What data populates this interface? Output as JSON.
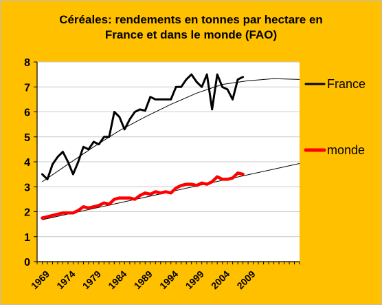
{
  "colors": {
    "background": "#ffc000",
    "plot_area": "#ffffff",
    "france": "#000000",
    "monde": "#ff0000",
    "trend": "#000000"
  },
  "chart_data": {
    "type": "line",
    "title": "Céréales: rendements en tonnes par hectare en France et dans le monde (FAO)",
    "title_lines": [
      "Céréales: rendements en tonnes par hectare en",
      "France et dans le monde (FAO)"
    ],
    "xlabel": "",
    "ylabel": "",
    "ylim": [
      0,
      8
    ],
    "yticks": [
      0,
      1,
      2,
      3,
      4,
      5,
      6,
      7,
      8
    ],
    "xlim": [
      1969,
      2020
    ],
    "xtick_labels": [
      "1969",
      "1974",
      "1979",
      "1984",
      "1989",
      "1994",
      "1999",
      "2004",
      "2009"
    ],
    "grid": "horizontal",
    "legend_position": "right",
    "series": [
      {
        "name": "France",
        "x": [
          1970,
          1971,
          1972,
          1973,
          1974,
          1975,
          1976,
          1977,
          1978,
          1979,
          1980,
          1981,
          1982,
          1983,
          1984,
          1985,
          1986,
          1987,
          1988,
          1989,
          1990,
          1991,
          1992,
          1993,
          1994,
          1995,
          1996,
          1997,
          1998,
          1999,
          2000,
          2001,
          2002,
          2003,
          2004,
          2005,
          2006,
          2007,
          2008,
          2009
        ],
        "values": [
          3.5,
          3.3,
          3.9,
          4.2,
          4.4,
          4.0,
          3.5,
          4.0,
          4.6,
          4.5,
          4.8,
          4.7,
          5.0,
          5.0,
          6.0,
          5.8,
          5.3,
          5.7,
          6.0,
          6.1,
          6.05,
          6.6,
          6.5,
          6.5,
          6.5,
          6.5,
          7.0,
          7.0,
          7.3,
          7.5,
          7.2,
          7.0,
          7.5,
          6.1,
          7.5,
          7.0,
          6.9,
          6.5,
          7.3,
          7.4
        ]
      },
      {
        "name": "monde",
        "x": [
          1970,
          1971,
          1972,
          1973,
          1974,
          1975,
          1976,
          1977,
          1978,
          1979,
          1980,
          1981,
          1982,
          1983,
          1984,
          1985,
          1986,
          1987,
          1988,
          1989,
          1990,
          1991,
          1992,
          1993,
          1994,
          1995,
          1996,
          1997,
          1998,
          1999,
          2000,
          2001,
          2002,
          2003,
          2004,
          2005,
          2006,
          2007,
          2008,
          2009
        ],
        "values": [
          1.75,
          1.8,
          1.85,
          1.9,
          1.95,
          1.95,
          1.95,
          2.05,
          2.2,
          2.15,
          2.2,
          2.25,
          2.35,
          2.3,
          2.5,
          2.55,
          2.55,
          2.55,
          2.5,
          2.65,
          2.75,
          2.7,
          2.8,
          2.75,
          2.8,
          2.75,
          2.95,
          3.05,
          3.1,
          3.1,
          3.05,
          3.15,
          3.1,
          3.2,
          3.4,
          3.3,
          3.3,
          3.35,
          3.55,
          3.5
        ]
      }
    ],
    "trendlines": [
      {
        "series": "France",
        "x": [
          1970,
          1975,
          1980,
          1985,
          1990,
          1995,
          2000,
          2005,
          2010,
          2015,
          2020
        ],
        "values": [
          3.2,
          3.9,
          4.6,
          5.25,
          5.8,
          6.3,
          6.75,
          7.1,
          7.25,
          7.33,
          7.3
        ]
      },
      {
        "series": "monde",
        "x": [
          1970,
          2020
        ],
        "values": [
          1.68,
          3.93
        ]
      }
    ]
  }
}
